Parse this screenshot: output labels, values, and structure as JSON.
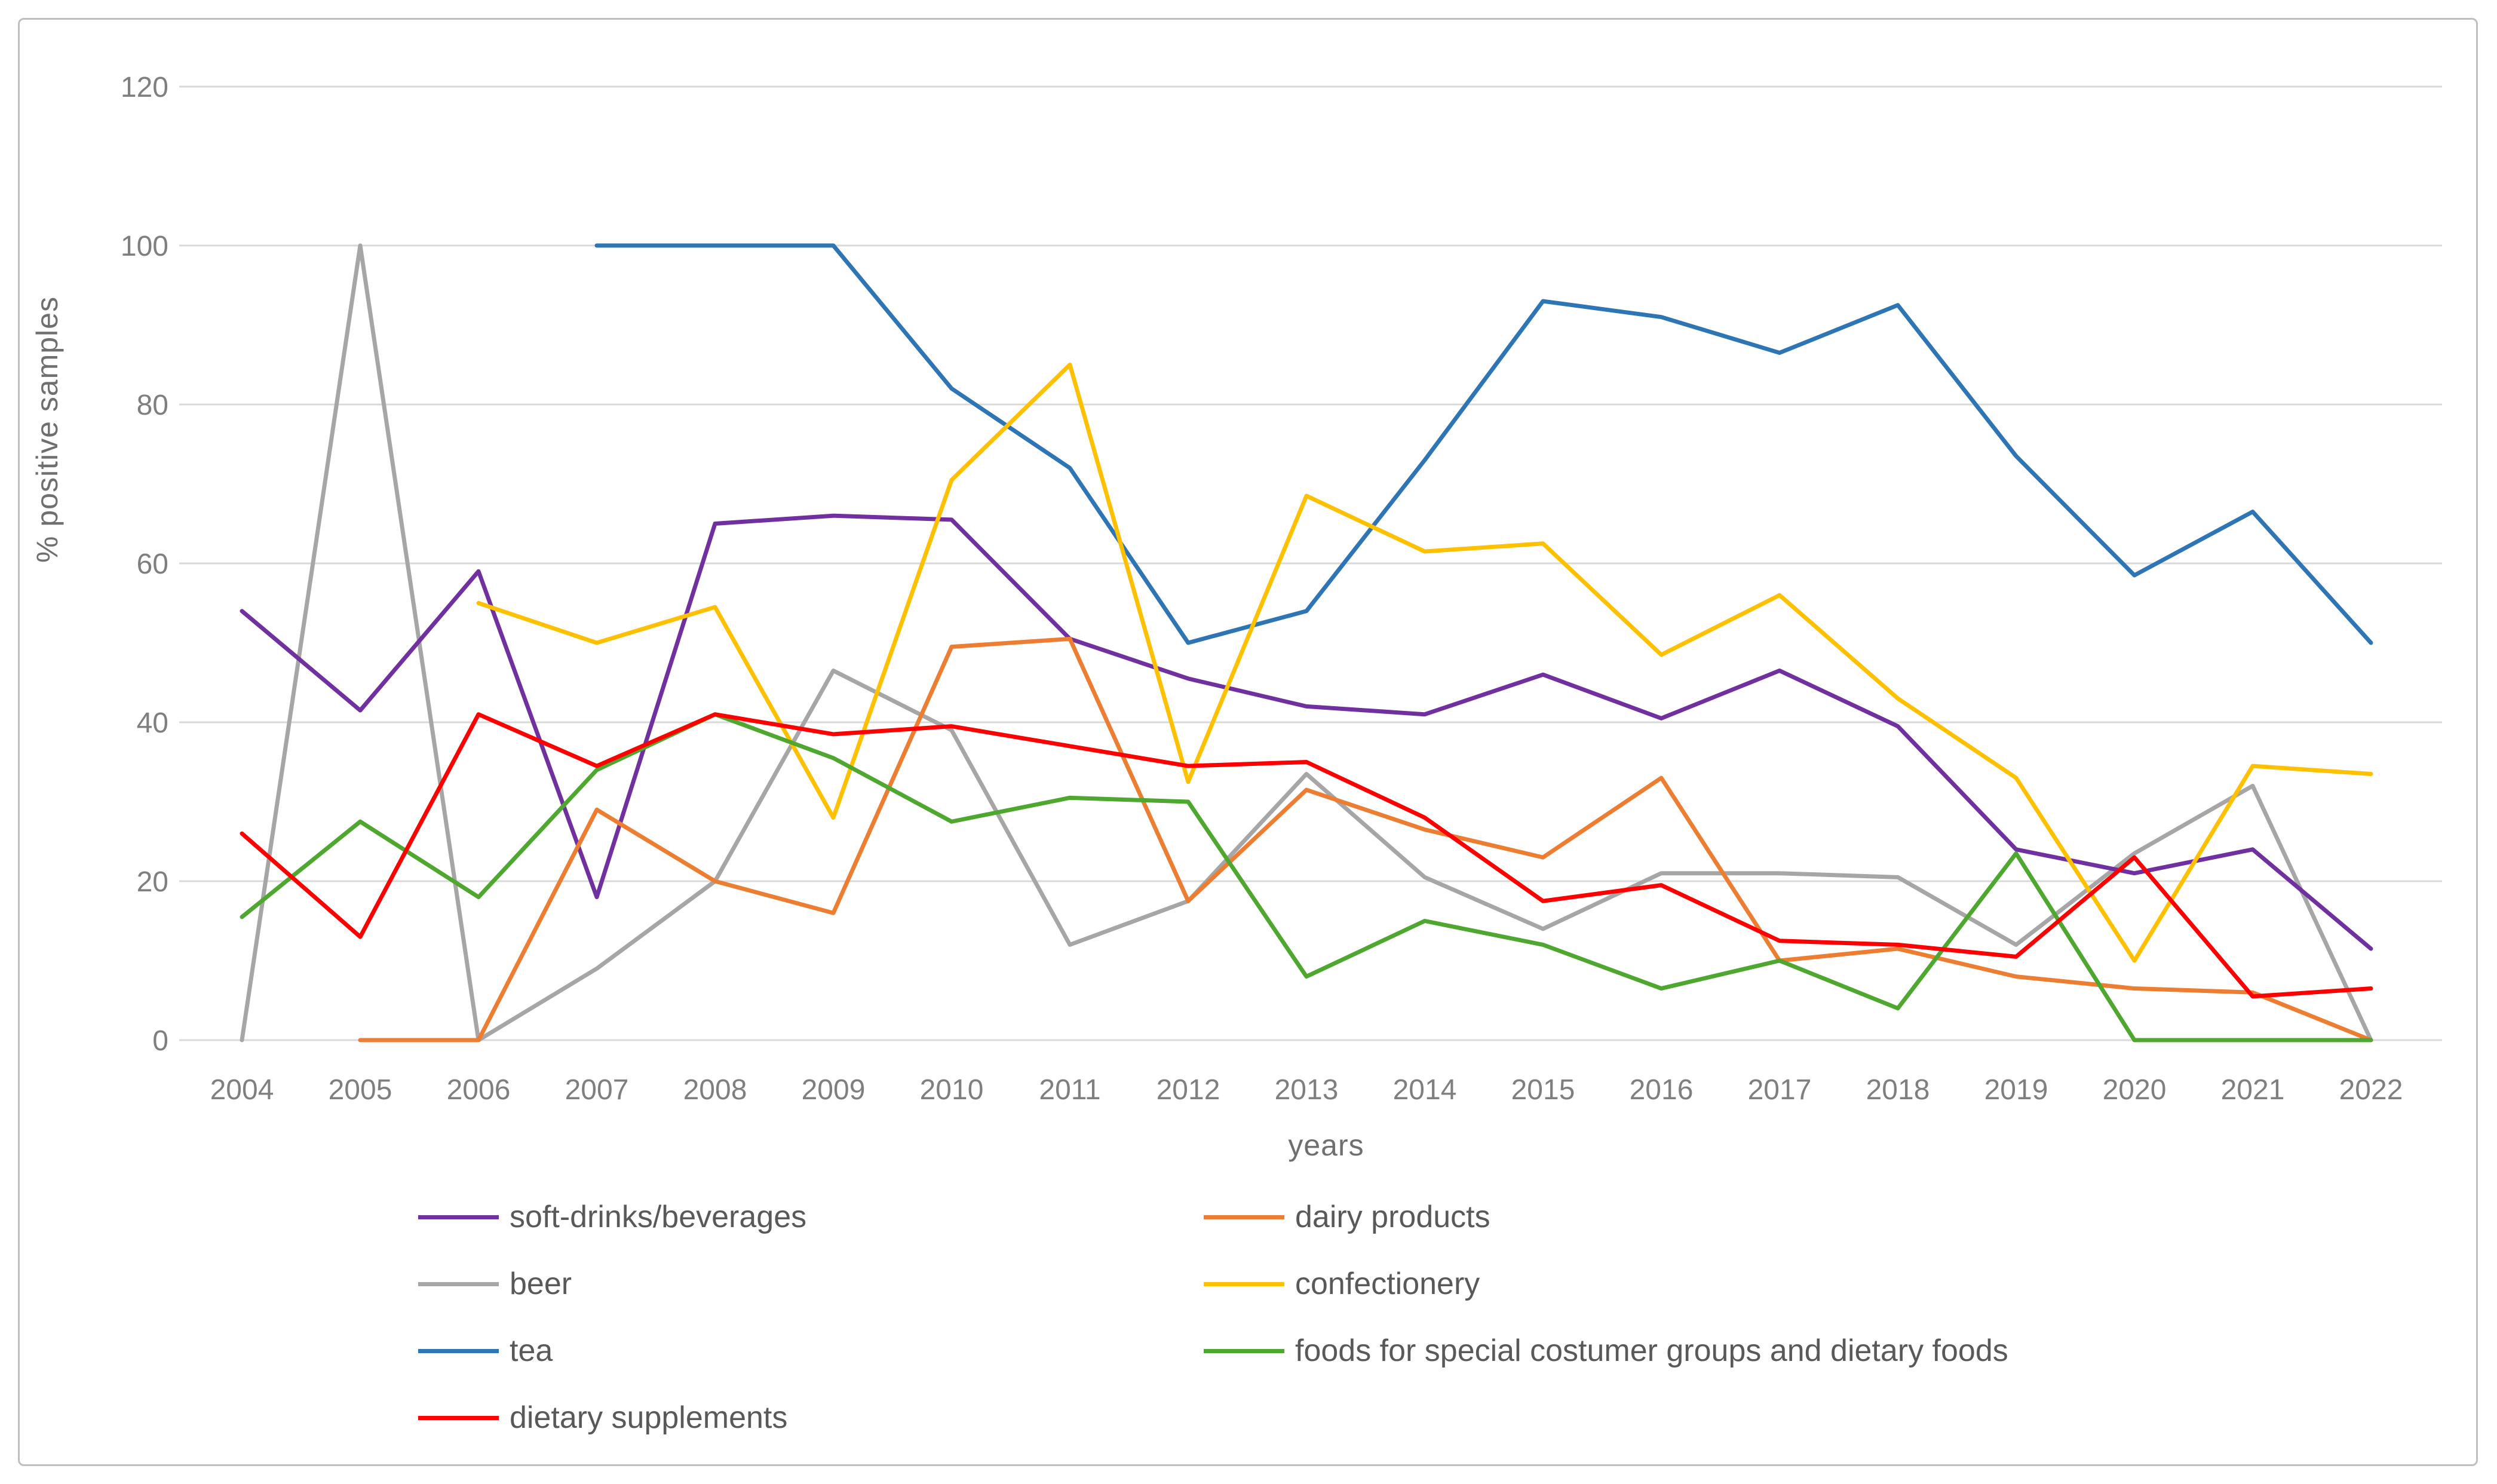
{
  "chart_data": {
    "type": "line",
    "title": "",
    "xlabel": "years",
    "ylabel": "% positive samples",
    "x": [
      2004,
      2005,
      2006,
      2007,
      2008,
      2009,
      2010,
      2011,
      2012,
      2013,
      2014,
      2015,
      2016,
      2017,
      2018,
      2019,
      2020,
      2021,
      2022
    ],
    "ylim": [
      0,
      120
    ],
    "yticks": [
      0,
      20,
      40,
      60,
      80,
      100,
      120
    ],
    "grid": true,
    "legend_position": "bottom",
    "series": [
      {
        "name": "beer",
        "color": "#A6A6A6",
        "values": [
          0,
          100,
          0,
          9,
          20,
          46.5,
          39,
          12,
          17.5,
          33.5,
          20.5,
          14,
          21,
          21,
          20.5,
          12,
          23.5,
          32,
          0
        ]
      },
      {
        "name": "tea",
        "color": "#2E75B6",
        "values": [
          null,
          null,
          null,
          100,
          100,
          100,
          82,
          72,
          50,
          54,
          73,
          93,
          91,
          86.5,
          92.5,
          73.5,
          58.5,
          66.5,
          50
        ]
      },
      {
        "name": "soft-drinks/beverages",
        "color": "#7030A0",
        "values": [
          54,
          41.5,
          59,
          18,
          65,
          66,
          65.5,
          50.5,
          45.5,
          42,
          41,
          46,
          40.5,
          46.5,
          39.5,
          24,
          21,
          24,
          11.5
        ]
      },
      {
        "name": "confectionery",
        "color": "#FFC000",
        "values": [
          null,
          null,
          55,
          50,
          54.5,
          28,
          70.5,
          85,
          32.5,
          68.5,
          61.5,
          62.5,
          48.5,
          56,
          43,
          33,
          10,
          34.5,
          33.5
        ]
      },
      {
        "name": "dairy products",
        "color": "#ED7D31",
        "values": [
          null,
          0,
          0,
          29,
          20,
          16,
          49.5,
          50.5,
          17.5,
          31.5,
          26.5,
          23,
          33,
          10,
          11.5,
          8,
          6.5,
          6,
          0
        ]
      },
      {
        "name": "foods for special costumer groups and dietary foods",
        "color": "#4EA72E",
        "values": [
          15.5,
          27.5,
          18,
          34,
          41,
          35.5,
          27.5,
          30.5,
          30,
          8,
          15,
          12,
          6.5,
          10,
          4,
          23.5,
          0,
          0,
          0
        ]
      },
      {
        "name": "dietary supplements",
        "color": "#FF0000",
        "values": [
          26,
          13,
          41,
          34.5,
          41,
          38.5,
          39.5,
          37,
          34.5,
          35,
          28,
          17.5,
          19.5,
          12.5,
          12,
          10.5,
          23,
          5.5,
          6.5
        ]
      }
    ]
  },
  "axes": {
    "xlabel": "years",
    "ylabel": "% positive samples"
  },
  "legend": {
    "column1": [
      "soft-drinks/beverages",
      "beer",
      "tea",
      "dietary supplements"
    ],
    "column2": [
      "dairy products",
      "confectionery",
      "foods for special costumer groups and dietary foods"
    ]
  },
  "style": {
    "gridline_color": "#D9D9D9",
    "tick_label_color": "#7F7F7F",
    "legend_text_color": "#595959",
    "border_color": "#BFBFBF"
  }
}
